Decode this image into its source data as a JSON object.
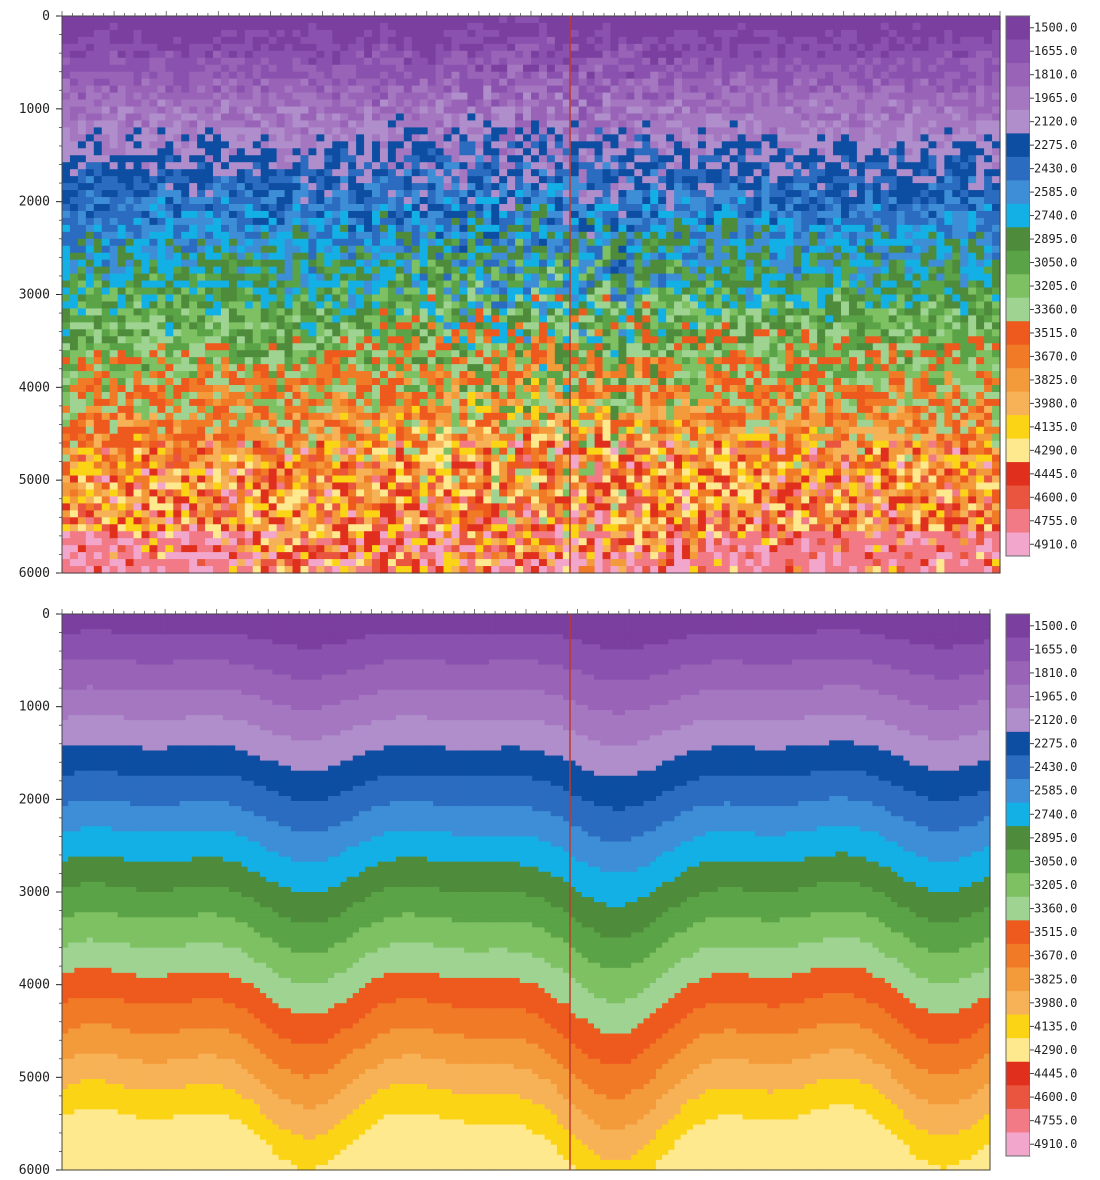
{
  "chart_data": [
    {
      "type": "heatmap",
      "title": "",
      "xlabel": "",
      "ylabel": "",
      "y_ticks": [
        "0",
        "1000",
        "2000",
        "3000",
        "4000",
        "5000",
        "6000"
      ],
      "ylim": [
        0,
        6000
      ],
      "colorbar": {
        "labels": [
          "1500.0",
          "1655.0",
          "1810.0",
          "1965.0",
          "2120.0",
          "2275.0",
          "2430.0",
          "2585.0",
          "2740.0",
          "2895.0",
          "3050.0",
          "3205.0",
          "3360.0",
          "3515.0",
          "3670.0",
          "3825.0",
          "3980.0",
          "4135.0",
          "4290.0",
          "4445.0",
          "4600.0",
          "4755.0",
          "4910.0"
        ],
        "colors": [
          "#7b3fa0",
          "#8a52ae",
          "#9964b8",
          "#a577c1",
          "#b08ecb",
          "#0d4ea3",
          "#2b6cc0",
          "#3d8ed6",
          "#13b0e6",
          "#4e8c3c",
          "#5aa346",
          "#7ec163",
          "#9ed392",
          "#ee5a1e",
          "#f17a26",
          "#f39a3a",
          "#f7b257",
          "#fcd416",
          "#ffe98e",
          "#e0301d",
          "#e9553f",
          "#f17a86",
          "#f2a6cc"
        ]
      },
      "description_of_field": "chaotic velocity tomogram, blocky vertical columns"
    },
    {
      "type": "heatmap",
      "title": "",
      "xlabel": "",
      "ylabel": "",
      "y_ticks": [
        "0",
        "1000",
        "2000",
        "3000",
        "4000",
        "5000",
        "6000"
      ],
      "ylim": [
        0,
        6000
      ],
      "colorbar": {
        "labels": [
          "1500.0",
          "1655.0",
          "1810.0",
          "1965.0",
          "2120.0",
          "2275.0",
          "2430.0",
          "2585.0",
          "2740.0",
          "2895.0",
          "3050.0",
          "3205.0",
          "3360.0",
          "3515.0",
          "3670.0",
          "3825.0",
          "3980.0",
          "4135.0",
          "4290.0",
          "4445.0",
          "4600.0",
          "4755.0",
          "4910.0"
        ],
        "colors": [
          "#7b3fa0",
          "#8a52ae",
          "#9964b8",
          "#a577c1",
          "#b08ecb",
          "#0d4ea3",
          "#2b6cc0",
          "#3d8ed6",
          "#13b0e6",
          "#4e8c3c",
          "#5aa346",
          "#7ec163",
          "#9ed392",
          "#ee5a1e",
          "#f17a26",
          "#f39a3a",
          "#f7b257",
          "#fcd416",
          "#ffe98e",
          "#e0301d",
          "#e9553f",
          "#f17a86",
          "#f2a6cc"
        ]
      },
      "description_of_field": "smooth layered velocity model"
    }
  ]
}
